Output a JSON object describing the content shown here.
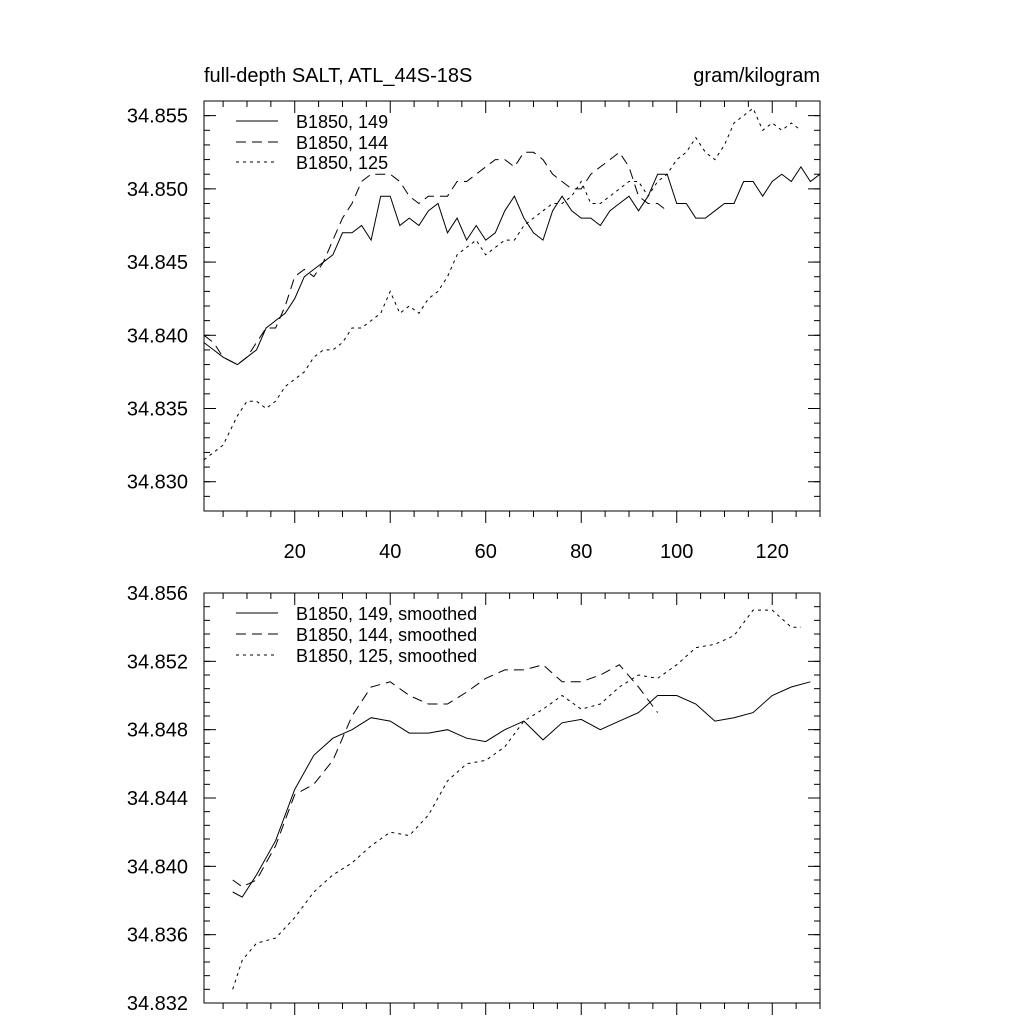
{
  "chart_data": [
    {
      "type": "line",
      "title_left": "full-depth SALT, ATL_44S-18S",
      "title_right": "gram/kilogram",
      "xlim": [
        1,
        130
      ],
      "ylim": [
        34.828,
        34.856
      ],
      "x_ticks": [
        20,
        40,
        60,
        80,
        100,
        120
      ],
      "x_tick_labels": [
        "20",
        "40",
        "60",
        "80",
        "100",
        "120"
      ],
      "y_ticks": [
        34.83,
        34.835,
        34.84,
        34.845,
        34.85,
        34.855
      ],
      "y_tick_labels": [
        "34.830",
        "34.835",
        "34.840",
        "34.845",
        "34.850",
        "34.855"
      ],
      "legend_position": "top-left",
      "series": [
        {
          "name": "B1850, 149",
          "dash": "solid",
          "x": [
            1,
            3,
            5,
            8,
            10,
            12,
            14,
            16,
            18,
            20,
            22,
            24,
            26,
            28,
            30,
            32,
            34,
            36,
            38,
            40,
            42,
            44,
            46,
            48,
            50,
            52,
            54,
            56,
            58,
            60,
            62,
            64,
            66,
            68,
            70,
            72,
            74,
            76,
            78,
            80,
            82,
            84,
            86,
            88,
            90,
            92,
            94,
            96,
            98,
            100,
            102,
            104,
            106,
            108,
            110,
            112,
            114,
            116,
            118,
            120,
            122,
            124,
            126,
            128,
            130
          ],
          "values": [
            34.8395,
            34.839,
            34.8385,
            34.838,
            34.8385,
            34.839,
            34.8405,
            34.841,
            34.8415,
            34.8425,
            34.844,
            34.8445,
            34.845,
            34.8455,
            34.847,
            34.847,
            34.8475,
            34.8465,
            34.8495,
            34.8495,
            34.8475,
            34.848,
            34.8475,
            34.8485,
            34.849,
            34.847,
            34.848,
            34.8465,
            34.8475,
            34.8465,
            34.847,
            34.8485,
            34.8495,
            34.848,
            34.847,
            34.8465,
            34.8485,
            34.8495,
            34.8485,
            34.848,
            34.848,
            34.8475,
            34.8485,
            34.849,
            34.8495,
            34.8485,
            34.8495,
            34.851,
            34.851,
            34.849,
            34.849,
            34.848,
            34.848,
            34.8485,
            34.849,
            34.849,
            34.8505,
            34.8505,
            34.8495,
            34.8505,
            34.851,
            34.8505,
            34.8515,
            34.8505,
            34.851
          ]
        },
        {
          "name": "B1850, 144",
          "dash": "dashed",
          "x": [
            1,
            3,
            5,
            8,
            10,
            12,
            14,
            16,
            18,
            20,
            22,
            24,
            26,
            28,
            30,
            32,
            34,
            36,
            38,
            40,
            42,
            44,
            46,
            48,
            50,
            52,
            54,
            56,
            58,
            60,
            62,
            64,
            66,
            68,
            70,
            72,
            74,
            76,
            78,
            80,
            82,
            84,
            86,
            88,
            90,
            92,
            94,
            96,
            98
          ],
          "values": [
            34.84,
            34.8395,
            34.8385,
            34.838,
            34.8385,
            34.8395,
            34.8405,
            34.8405,
            34.842,
            34.844,
            34.8445,
            34.844,
            34.845,
            34.8465,
            34.848,
            34.849,
            34.8505,
            34.851,
            34.851,
            34.851,
            34.8505,
            34.8495,
            34.849,
            34.8495,
            34.8495,
            34.8495,
            34.8505,
            34.8505,
            34.851,
            34.8515,
            34.852,
            34.852,
            34.8515,
            34.8525,
            34.8525,
            34.852,
            34.851,
            34.8505,
            34.85,
            34.85,
            34.851,
            34.8515,
            34.852,
            34.8525,
            34.8515,
            34.8495,
            34.849,
            34.849,
            34.8485
          ]
        },
        {
          "name": "B1850, 125",
          "dash": "dotted",
          "x": [
            1,
            3,
            5,
            8,
            10,
            12,
            14,
            16,
            18,
            20,
            22,
            24,
            26,
            28,
            30,
            32,
            34,
            36,
            38,
            40,
            42,
            44,
            46,
            48,
            50,
            52,
            54,
            56,
            58,
            60,
            62,
            64,
            66,
            68,
            70,
            72,
            74,
            76,
            78,
            80,
            82,
            84,
            86,
            88,
            90,
            92,
            94,
            96,
            98,
            100,
            102,
            104,
            106,
            108,
            110,
            112,
            114,
            116,
            118,
            120,
            122,
            124,
            126
          ],
          "values": [
            34.8315,
            34.832,
            34.8325,
            34.8345,
            34.8355,
            34.8355,
            34.835,
            34.8355,
            34.8365,
            34.837,
            34.8375,
            34.8385,
            34.839,
            34.839,
            34.8395,
            34.8405,
            34.8405,
            34.841,
            34.8415,
            34.843,
            34.8415,
            34.842,
            34.8415,
            34.8425,
            34.843,
            34.844,
            34.8455,
            34.846,
            34.8465,
            34.8455,
            34.846,
            34.8465,
            34.8465,
            34.8475,
            34.848,
            34.8485,
            34.849,
            34.849,
            34.8495,
            34.8505,
            34.849,
            34.849,
            34.8495,
            34.85,
            34.8505,
            34.8505,
            34.8495,
            34.8505,
            34.851,
            34.852,
            34.8525,
            34.8535,
            34.8525,
            34.852,
            34.853,
            34.8545,
            34.855,
            34.8555,
            34.854,
            34.8545,
            34.854,
            34.8545,
            34.854
          ]
        }
      ]
    },
    {
      "type": "line",
      "xlim": [
        1,
        130
      ],
      "ylim": [
        34.832,
        34.856
      ],
      "x_ticks": [
        20,
        40,
        60,
        80,
        100,
        120
      ],
      "y_ticks": [
        34.832,
        34.836,
        34.84,
        34.844,
        34.848,
        34.852,
        34.856
      ],
      "y_tick_labels": [
        "34.832",
        "34.836",
        "34.840",
        "34.844",
        "34.848",
        "34.852",
        "34.856"
      ],
      "legend_position": "top-left",
      "series": [
        {
          "name": "B1850, 149, smoothed",
          "dash": "solid",
          "x": [
            7,
            9,
            12,
            16,
            20,
            24,
            28,
            32,
            36,
            40,
            44,
            48,
            52,
            56,
            60,
            64,
            68,
            72,
            76,
            80,
            84,
            88,
            92,
            96,
            100,
            104,
            108,
            112,
            116,
            120,
            124,
            128
          ],
          "values": [
            34.8385,
            34.8382,
            34.8395,
            34.8415,
            34.8445,
            34.8465,
            34.8475,
            34.848,
            34.8487,
            34.8485,
            34.8478,
            34.8478,
            34.848,
            34.8475,
            34.8473,
            34.848,
            34.8485,
            34.8474,
            34.8484,
            34.8486,
            34.848,
            34.8485,
            34.849,
            34.85,
            34.85,
            34.8495,
            34.8485,
            34.8487,
            34.849,
            34.85,
            34.8505,
            34.8508
          ]
        },
        {
          "name": "B1850, 144, smoothed",
          "dash": "dashed",
          "x": [
            7,
            9,
            12,
            16,
            20,
            24,
            28,
            32,
            36,
            40,
            44,
            48,
            52,
            56,
            60,
            64,
            68,
            72,
            76,
            80,
            84,
            88,
            92,
            96
          ],
          "values": [
            34.8392,
            34.8388,
            34.8392,
            34.8412,
            34.8442,
            34.8448,
            34.8462,
            34.8488,
            34.8505,
            34.8508,
            34.85,
            34.8495,
            34.8495,
            34.8502,
            34.851,
            34.8515,
            34.8515,
            34.8518,
            34.8508,
            34.8508,
            34.8512,
            34.8518,
            34.8505,
            34.849
          ]
        },
        {
          "name": "B1850, 125, smoothed",
          "dash": "dotted",
          "x": [
            7,
            9,
            12,
            16,
            20,
            24,
            28,
            32,
            36,
            40,
            44,
            48,
            52,
            56,
            60,
            64,
            68,
            72,
            76,
            80,
            84,
            88,
            92,
            96,
            100,
            104,
            108,
            112,
            116,
            120,
            124,
            126
          ],
          "values": [
            34.8328,
            34.8345,
            34.8355,
            34.8358,
            34.837,
            34.8385,
            34.8395,
            34.8402,
            34.8412,
            34.842,
            34.8418,
            34.843,
            34.845,
            34.846,
            34.8462,
            34.847,
            34.8485,
            34.8492,
            34.85,
            34.8492,
            34.8495,
            34.8505,
            34.8512,
            34.851,
            34.8518,
            34.8528,
            34.853,
            34.8535,
            34.855,
            34.855,
            34.854,
            34.854
          ]
        }
      ]
    }
  ]
}
